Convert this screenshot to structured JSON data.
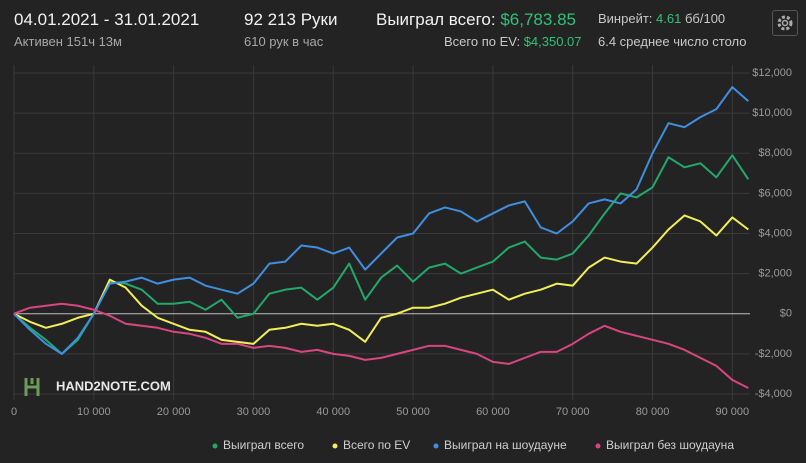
{
  "header": {
    "period": "04.01.2021 - 31.01.2021",
    "active": "Активен 151ч 13м",
    "hands": "92 213 Руки",
    "hands_rate": "610 рук в час",
    "won_label": "Выиграл всего:",
    "won_value": "$6,783.85",
    "ev_label": "Всего по EV:",
    "ev_value": "$4,350.07",
    "winrate_label": "Винрейт:",
    "winrate_value": "4.61",
    "winrate_unit": "бб/100",
    "tables": "6.4 среднее число столо",
    "logo": "HAND2NOTE.COM"
  },
  "chart_data": {
    "type": "line",
    "x": [
      0,
      2000,
      4000,
      6000,
      8000,
      10000,
      12000,
      14000,
      16000,
      18000,
      20000,
      22000,
      24000,
      26000,
      28000,
      30000,
      32000,
      34000,
      36000,
      38000,
      40000,
      42000,
      44000,
      46000,
      48000,
      50000,
      52000,
      54000,
      56000,
      58000,
      60000,
      62000,
      64000,
      66000,
      68000,
      70000,
      72000,
      74000,
      76000,
      78000,
      80000,
      82000,
      84000,
      86000,
      88000,
      90000,
      92000
    ],
    "series": [
      {
        "name": "Выиграл всего",
        "color": "#22a86c",
        "values": [
          0,
          -700,
          -1300,
          -2000,
          -1300,
          0,
          1600,
          1500,
          1200,
          500,
          500,
          600,
          200,
          700,
          -200,
          0,
          1000,
          1200,
          1300,
          700,
          1300,
          2500,
          700,
          1800,
          2400,
          1600,
          2300,
          2500,
          2000,
          2300,
          2600,
          3300,
          3600,
          2800,
          2700,
          3000,
          3900,
          5000,
          6000,
          5800,
          6300,
          7800,
          7300,
          7500,
          6800,
          7900,
          6700
        ]
      },
      {
        "name": "Всего по EV",
        "color": "#f2ee5a",
        "values": [
          0,
          -400,
          -700,
          -500,
          -200,
          0,
          1700,
          1300,
          400,
          -200,
          -500,
          -800,
          -900,
          -1300,
          -1400,
          -1500,
          -800,
          -700,
          -500,
          -600,
          -500,
          -800,
          -1400,
          -200,
          0,
          300,
          300,
          500,
          800,
          1000,
          1200,
          700,
          1000,
          1200,
          1500,
          1400,
          2300,
          2800,
          2600,
          2500,
          3300,
          4200,
          4900,
          4600,
          3900,
          4800,
          4200
        ]
      },
      {
        "name": "Выиграл на шоудауне",
        "color": "#3f8fe0",
        "values": [
          0,
          -800,
          -1500,
          -2000,
          -1200,
          0,
          1500,
          1600,
          1800,
          1500,
          1700,
          1800,
          1400,
          1200,
          1000,
          1500,
          2500,
          2600,
          3400,
          3300,
          3000,
          3300,
          2200,
          3000,
          3800,
          4000,
          5000,
          5300,
          5100,
          4600,
          5000,
          5400,
          5600,
          4300,
          4000,
          4600,
          5500,
          5700,
          5500,
          6200,
          8000,
          9500,
          9300,
          9800,
          10200,
          11300,
          10600
        ]
      },
      {
        "name": "Выиграл без шоудауна",
        "color": "#d9467f",
        "values": [
          0,
          300,
          400,
          500,
          400,
          200,
          -100,
          -500,
          -600,
          -700,
          -900,
          -1000,
          -1200,
          -1500,
          -1500,
          -1700,
          -1600,
          -1700,
          -1900,
          -1800,
          -2000,
          -2100,
          -2300,
          -2200,
          -2000,
          -1800,
          -1600,
          -1600,
          -1800,
          -2000,
          -2400,
          -2500,
          -2200,
          -1900,
          -1900,
          -1500,
          -1000,
          -600,
          -900,
          -1100,
          -1300,
          -1500,
          -1800,
          -2200,
          -2600,
          -3300,
          -3700
        ]
      }
    ],
    "xlim": [
      0,
      92213
    ],
    "xticks": [
      0,
      {
        "value": 10000,
        "label": "10 000"
      },
      {
        "value": 20000,
        "label": "20 000"
      },
      {
        "value": 30000,
        "label": "30 000"
      },
      {
        "value": 40000,
        "label": "40 000"
      },
      {
        "value": 50000,
        "label": "50 000"
      },
      {
        "value": 60000,
        "label": "60 000"
      },
      {
        "value": 70000,
        "label": "70 000"
      },
      {
        "value": 80000,
        "label": "80 000"
      },
      {
        "value": 90000,
        "label": "90 000"
      }
    ],
    "ylim": [
      -4300,
      12400
    ],
    "yticks": [
      {
        "value": 12000,
        "label": "$12,000"
      },
      {
        "value": 10000,
        "label": "$10,000"
      },
      {
        "value": 8000,
        "label": "$8,000"
      },
      {
        "value": 6000,
        "label": "$6,000"
      },
      {
        "value": 4000,
        "label": "$4,000"
      },
      {
        "value": 2000,
        "label": "$2,000"
      },
      {
        "value": 0,
        "label": "$0"
      },
      {
        "value": -2000,
        "label": "-$2,000"
      },
      {
        "value": -4000,
        "label": "-$4,000"
      }
    ],
    "grid": true,
    "legend": "bottom"
  }
}
